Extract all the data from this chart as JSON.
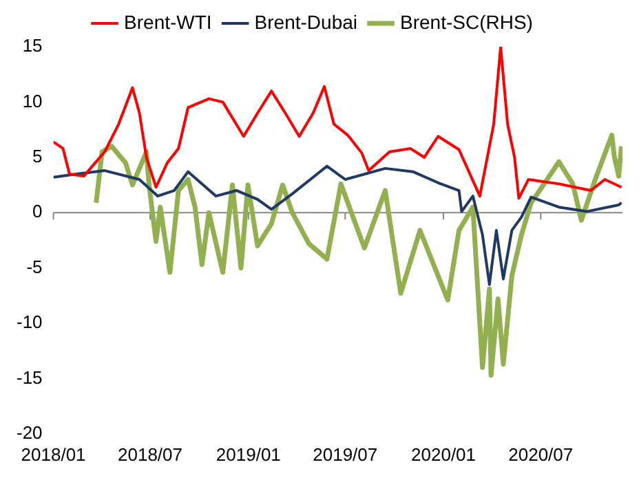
{
  "chart_data": {
    "type": "line",
    "legend": "top",
    "grid": false,
    "marker": "none",
    "line_style": "solid",
    "xlim": [
      "2018-01-01",
      "2020-12-01"
    ],
    "xticks": [
      {
        "value": "2018-01-01",
        "label": "2018/01"
      },
      {
        "value": "2018-07-01",
        "label": "2018/07"
      },
      {
        "value": "2019-01-01",
        "label": "2019/01"
      },
      {
        "value": "2019-07-01",
        "label": "2019/07"
      },
      {
        "value": "2020-01-01",
        "label": "2020/01"
      },
      {
        "value": "2020-07-01",
        "label": "2020/07"
      }
    ],
    "ref_lines": [
      {
        "axis": "y",
        "value": 0,
        "color": "#868686"
      }
    ],
    "ylim": [
      -20,
      15
    ],
    "yticks": [
      -20,
      -15,
      -10,
      -5,
      0,
      5,
      10,
      15
    ],
    "series": [
      {
        "name": "Brent-WTI",
        "color": "#ff0000",
        "x": [
          "2018-01-01",
          "2018-01-19",
          "2018-01-31",
          "2018-02-27",
          "2018-03-20",
          "2018-04-07",
          "2018-05-03",
          "2018-05-29",
          "2018-06-11",
          "2018-06-24",
          "2018-07-12",
          "2018-08-02",
          "2018-08-23",
          "2018-09-10",
          "2018-10-19",
          "2018-11-14",
          "2018-12-23",
          "2019-01-18",
          "2019-02-13",
          "2019-03-11",
          "2019-04-06",
          "2019-05-02",
          "2019-05-23",
          "2019-06-10",
          "2019-07-06",
          "2019-08-01",
          "2019-08-14",
          "2019-09-22",
          "2019-10-31",
          "2019-11-26",
          "2019-12-22",
          "2020-01-30",
          "2020-03-09",
          "2020-04-04",
          "2020-04-17",
          "2020-04-30",
          "2020-05-13",
          "2020-05-21",
          "2020-06-08",
          "2020-08-04",
          "2020-10-03",
          "2020-10-29",
          "2020-11-29"
        ],
        "values": [
          6.4,
          5.8,
          3.5,
          3.3,
          4.5,
          5.5,
          8,
          11.3,
          9,
          5,
          2.3,
          4.5,
          5.8,
          9.5,
          10.3,
          10,
          6.9,
          9,
          11,
          9,
          6.9,
          9,
          11.4,
          8,
          7,
          5.4,
          3.8,
          5.5,
          5.8,
          5,
          6.9,
          5.7,
          1.5,
          8,
          15,
          8,
          5,
          1.3,
          3,
          2.6,
          2,
          3,
          2.3
        ]
      },
      {
        "name": "Brent-Dubai",
        "color": "#1f3864",
        "x": [
          "2018-01-01",
          "2018-02-14",
          "2018-04-07",
          "2018-06-11",
          "2018-07-15",
          "2018-08-15",
          "2018-09-10",
          "2018-11-01",
          "2018-12-10",
          "2019-01-18",
          "2019-02-13",
          "2019-03-24",
          "2019-05-28",
          "2019-07-01",
          "2019-09-14",
          "2019-11-05",
          "2019-12-22",
          "2020-01-30",
          "2020-02-04",
          "2020-02-25",
          "2020-03-14",
          "2020-03-27",
          "2020-04-09",
          "2020-04-22",
          "2020-05-08",
          "2020-05-26",
          "2020-06-13",
          "2020-08-04",
          "2020-09-25",
          "2020-11-24",
          "2020-11-29"
        ],
        "values": [
          3.2,
          3.5,
          3.8,
          3,
          1.5,
          2,
          3.7,
          1.5,
          2,
          1.2,
          0.3,
          1.7,
          4.2,
          3,
          4,
          3.7,
          2.7,
          2,
          0.1,
          1.5,
          -2,
          -6.5,
          -1.6,
          -6,
          -1.6,
          -0.4,
          1.4,
          0.5,
          0.1,
          0.7,
          0.9
        ]
      },
      {
        "name": "Brent-SC(RHS)",
        "color": "#92b050",
        "x": [
          "2018-03-22",
          "2018-04-02",
          "2018-04-20",
          "2018-05-16",
          "2018-05-29",
          "2018-06-24",
          "2018-06-29",
          "2018-07-12",
          "2018-07-20",
          "2018-08-07",
          "2018-08-23",
          "2018-09-10",
          "2018-09-23",
          "2018-10-06",
          "2018-10-19",
          "2018-11-14",
          "2018-12-02",
          "2018-12-18",
          "2018-12-31",
          "2019-01-18",
          "2019-02-13",
          "2019-03-06",
          "2019-03-24",
          "2019-04-24",
          "2019-05-28",
          "2019-06-23",
          "2019-08-06",
          "2019-09-14",
          "2019-10-13",
          "2019-11-18",
          "2020-01-09",
          "2020-01-30",
          "2020-02-25",
          "2020-03-14",
          "2020-03-27",
          "2020-03-30",
          "2020-04-12",
          "2020-04-22",
          "2020-05-08",
          "2020-05-26",
          "2020-06-13",
          "2020-06-29",
          "2020-08-04",
          "2020-08-30",
          "2020-09-15",
          "2020-10-11",
          "2020-11-11",
          "2020-11-16",
          "2020-11-24",
          "2020-11-29"
        ],
        "values": [
          0.9,
          5.5,
          6,
          4.5,
          2.5,
          5.5,
          2.5,
          -2.6,
          0.5,
          -5.4,
          2,
          3,
          0.5,
          -4.7,
          0,
          -5.4,
          2.5,
          -5,
          2.5,
          -3,
          -1,
          2.5,
          0,
          -2.8,
          -4.2,
          2.6,
          -3.2,
          2,
          -7.3,
          -1.6,
          -7.9,
          -1.6,
          0.5,
          -14,
          -6.9,
          -14.7,
          -7.8,
          -13.7,
          -5.7,
          -2,
          0.9,
          2,
          4.6,
          2.6,
          -0.7,
          3,
          7,
          5,
          3.3,
          6
        ]
      }
    ]
  }
}
